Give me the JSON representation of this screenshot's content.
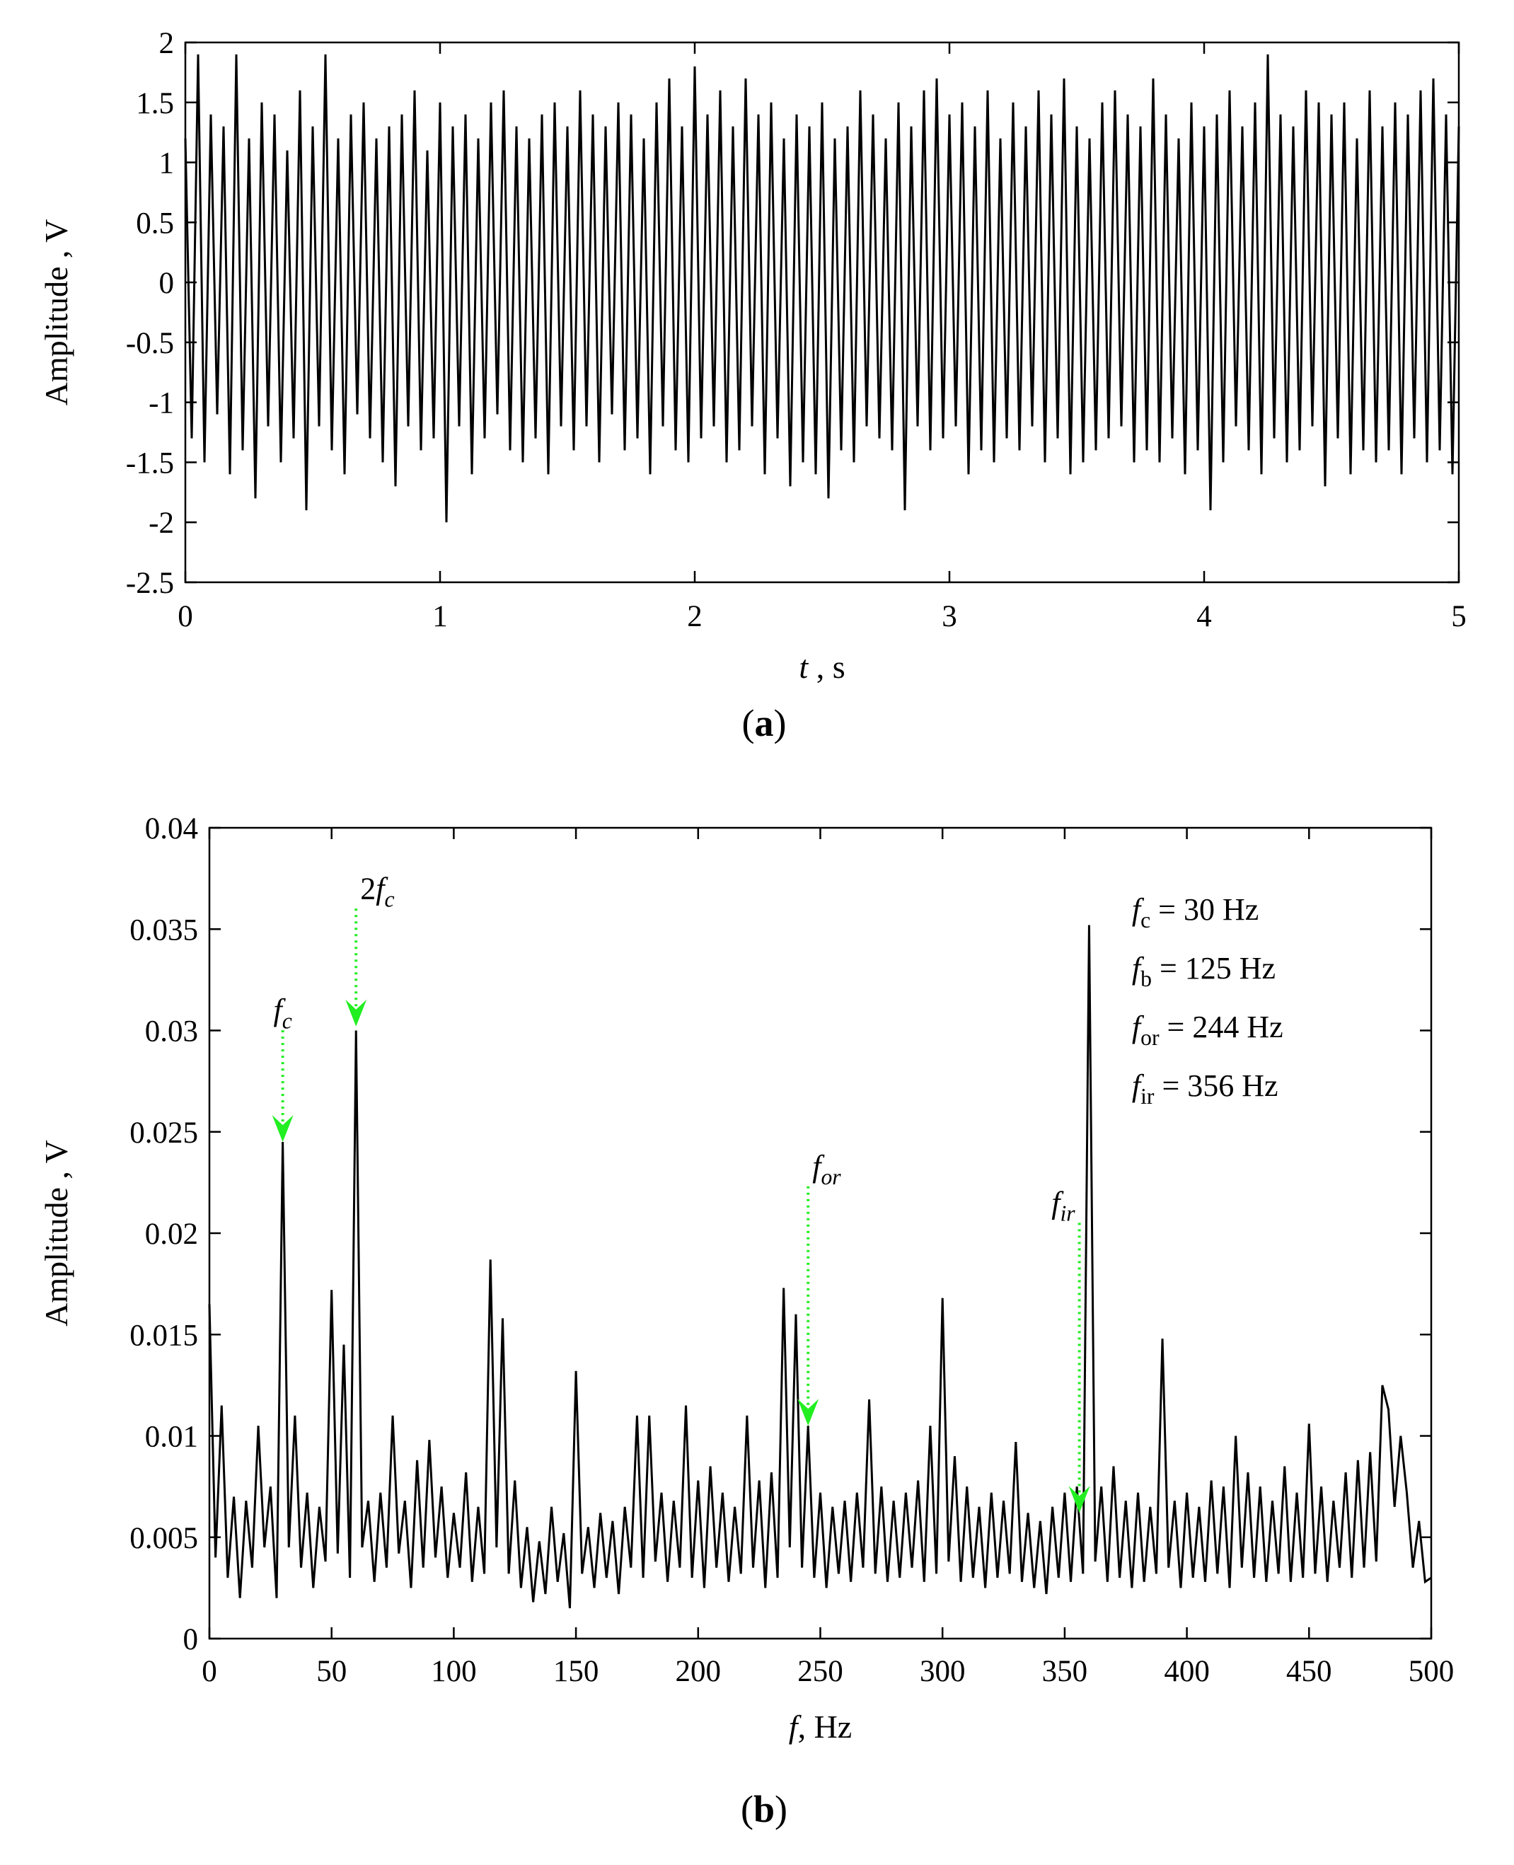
{
  "chart_data": [
    {
      "type": "line",
      "panel_label": {
        "open": "(",
        "letter": "a",
        "close": ")"
      },
      "xlabel": {
        "italic": "t",
        "rest": " , s"
      },
      "ylabel": "Amplitude , V",
      "color": "#000000",
      "xlim": [
        0,
        5
      ],
      "xticks": [
        0,
        1,
        2,
        3,
        4,
        5
      ],
      "ylim": [
        -2.5,
        2
      ],
      "yticks": [
        -2.5,
        -2,
        -1.5,
        -1,
        -0.5,
        0,
        0.5,
        1,
        1.5,
        2
      ],
      "x": [
        0,
        0.025,
        0.05,
        0.075,
        0.1,
        0.125,
        0.15,
        0.175,
        0.2,
        0.225,
        0.25,
        0.275,
        0.3,
        0.325,
        0.35,
        0.375,
        0.4,
        0.425,
        0.45,
        0.475,
        0.5,
        0.525,
        0.55,
        0.575,
        0.6,
        0.625,
        0.65,
        0.675,
        0.7,
        0.725,
        0.75,
        0.775,
        0.8,
        0.825,
        0.85,
        0.875,
        0.9,
        0.925,
        0.95,
        0.975,
        1,
        1.025,
        1.05,
        1.075,
        1.1,
        1.125,
        1.15,
        1.175,
        1.2,
        1.225,
        1.25,
        1.275,
        1.3,
        1.325,
        1.35,
        1.375,
        1.4,
        1.425,
        1.45,
        1.475,
        1.5,
        1.525,
        1.55,
        1.575,
        1.6,
        1.625,
        1.65,
        1.675,
        1.7,
        1.725,
        1.75,
        1.775,
        1.8,
        1.825,
        1.85,
        1.875,
        1.9,
        1.925,
        1.95,
        1.975,
        2,
        2.025,
        2.05,
        2.075,
        2.1,
        2.125,
        2.15,
        2.175,
        2.2,
        2.225,
        2.25,
        2.275,
        2.3,
        2.325,
        2.35,
        2.375,
        2.4,
        2.425,
        2.45,
        2.475,
        2.5,
        2.525,
        2.55,
        2.575,
        2.6,
        2.625,
        2.65,
        2.675,
        2.7,
        2.725,
        2.75,
        2.775,
        2.8,
        2.825,
        2.85,
        2.875,
        2.9,
        2.925,
        2.95,
        2.975,
        3,
        3.025,
        3.05,
        3.075,
        3.1,
        3.125,
        3.15,
        3.175,
        3.2,
        3.225,
        3.25,
        3.275,
        3.3,
        3.325,
        3.35,
        3.375,
        3.4,
        3.425,
        3.45,
        3.475,
        3.5,
        3.525,
        3.55,
        3.575,
        3.6,
        3.625,
        3.65,
        3.675,
        3.7,
        3.725,
        3.75,
        3.775,
        3.8,
        3.825,
        3.85,
        3.875,
        3.9,
        3.925,
        3.95,
        3.975,
        4,
        4.025,
        4.05,
        4.075,
        4.1,
        4.125,
        4.15,
        4.175,
        4.2,
        4.225,
        4.25,
        4.275,
        4.3,
        4.325,
        4.35,
        4.375,
        4.4,
        4.425,
        4.45,
        4.475,
        4.5,
        4.525,
        4.55,
        4.575,
        4.6,
        4.625,
        4.65,
        4.675,
        4.7,
        4.725,
        4.75,
        4.775,
        4.8,
        4.825,
        4.85,
        4.875,
        4.9,
        4.925,
        4.95,
        4.975,
        5
      ],
      "values": [
        1.2,
        -1.3,
        1.9,
        -1.5,
        1.4,
        -1.1,
        1.3,
        -1.6,
        1.9,
        -1.4,
        1.2,
        -1.8,
        1.5,
        -1.2,
        1.4,
        -1.5,
        1.1,
        -1.3,
        1.6,
        -1.9,
        1.3,
        -1.2,
        1.9,
        -1.4,
        1.2,
        -1.6,
        1.4,
        -1.1,
        1.5,
        -1.3,
        1.2,
        -1.5,
        1.3,
        -1.7,
        1.4,
        -1.2,
        1.6,
        -1.4,
        1.1,
        -1.3,
        1.5,
        -2.0,
        1.3,
        -1.2,
        1.4,
        -1.6,
        1.2,
        -1.3,
        1.5,
        -1.1,
        1.6,
        -1.4,
        1.3,
        -1.5,
        1.2,
        -1.3,
        1.4,
        -1.6,
        1.5,
        -1.2,
        1.3,
        -1.4,
        1.6,
        -1.2,
        1.4,
        -1.5,
        1.3,
        -1.1,
        1.5,
        -1.4,
        1.4,
        -1.3,
        1.2,
        -1.6,
        1.5,
        -1.2,
        1.7,
        -1.4,
        1.3,
        -1.5,
        1.8,
        -1.3,
        1.4,
        -1.2,
        1.6,
        -1.5,
        1.3,
        -1.4,
        1.7,
        -1.2,
        1.4,
        -1.6,
        1.5,
        -1.3,
        1.2,
        -1.7,
        1.4,
        -1.5,
        1.3,
        -1.6,
        1.5,
        -1.8,
        1.2,
        -1.4,
        1.3,
        -1.5,
        1.6,
        -1.2,
        1.4,
        -1.3,
        1.2,
        -1.4,
        1.5,
        -1.9,
        1.3,
        -1.2,
        1.6,
        -1.4,
        1.7,
        -1.3,
        1.4,
        -1.2,
        1.5,
        -1.6,
        1.3,
        -1.4,
        1.6,
        -1.5,
        1.2,
        -1.3,
        1.5,
        -1.4,
        1.3,
        -1.2,
        1.6,
        -1.5,
        1.4,
        -1.3,
        1.7,
        -1.6,
        1.3,
        -1.5,
        1.2,
        -1.4,
        1.5,
        -1.3,
        1.6,
        -1.2,
        1.4,
        -1.5,
        1.3,
        -1.4,
        1.7,
        -1.5,
        1.4,
        -1.3,
        1.2,
        -1.6,
        1.5,
        -1.4,
        1.3,
        -1.9,
        1.4,
        -1.5,
        1.6,
        -1.2,
        1.3,
        -1.4,
        1.5,
        -1.6,
        1.9,
        -1.3,
        1.4,
        -1.5,
        1.3,
        -1.4,
        1.6,
        -1.2,
        1.5,
        -1.7,
        1.4,
        -1.3,
        1.5,
        -1.6,
        1.2,
        -1.4,
        1.6,
        -1.5,
        1.3,
        -1.4,
        1.5,
        -1.6,
        1.4,
        -1.3,
        1.6,
        -1.5,
        1.7,
        -1.4,
        1.4,
        -1.6,
        1.3
      ]
    },
    {
      "type": "line",
      "panel_label": {
        "open": "(",
        "letter": "b",
        "close": ")"
      },
      "xlabel": {
        "italic": "f",
        "rest": ", Hz"
      },
      "ylabel": "Amplitude , V",
      "color": "#000000",
      "xlim": [
        0,
        500
      ],
      "xticks": [
        0,
        50,
        100,
        150,
        200,
        250,
        300,
        350,
        400,
        450,
        500
      ],
      "ylim": [
        0,
        0.04
      ],
      "yticks": [
        0,
        0.005,
        0.01,
        0.015,
        0.02,
        0.025,
        0.03,
        0.035,
        0.04
      ],
      "x": [
        0,
        2.5,
        5,
        7.5,
        10,
        12.5,
        15,
        17.5,
        20,
        22.5,
        25,
        27.5,
        30,
        32.5,
        35,
        37.5,
        40,
        42.5,
        45,
        47.5,
        50,
        52.5,
        55,
        57.5,
        60,
        62.5,
        65,
        67.5,
        70,
        72.5,
        75,
        77.5,
        80,
        82.5,
        85,
        87.5,
        90,
        92.5,
        95,
        97.5,
        100,
        102.5,
        105,
        107.5,
        110,
        112.5,
        115,
        117.5,
        120,
        122.5,
        125,
        127.5,
        130,
        132.5,
        135,
        137.5,
        140,
        142.5,
        145,
        147.5,
        150,
        152.5,
        155,
        157.5,
        160,
        162.5,
        165,
        167.5,
        170,
        172.5,
        175,
        177.5,
        180,
        182.5,
        185,
        187.5,
        190,
        192.5,
        195,
        197.5,
        200,
        202.5,
        205,
        207.5,
        210,
        212.5,
        215,
        217.5,
        220,
        222.5,
        225,
        227.5,
        230,
        232.5,
        235,
        237.5,
        240,
        242.5,
        245,
        247.5,
        250,
        252.5,
        255,
        257.5,
        260,
        262.5,
        265,
        267.5,
        270,
        272.5,
        275,
        277.5,
        280,
        282.5,
        285,
        287.5,
        290,
        292.5,
        295,
        297.5,
        300,
        302.5,
        305,
        307.5,
        310,
        312.5,
        315,
        317.5,
        320,
        322.5,
        325,
        327.5,
        330,
        332.5,
        335,
        337.5,
        340,
        342.5,
        345,
        347.5,
        350,
        352.5,
        355,
        357.5,
        360,
        362.5,
        365,
        367.5,
        370,
        372.5,
        375,
        377.5,
        380,
        382.5,
        385,
        387.5,
        390,
        392.5,
        395,
        397.5,
        400,
        402.5,
        405,
        407.5,
        410,
        412.5,
        415,
        417.5,
        420,
        422.5,
        425,
        427.5,
        430,
        432.5,
        435,
        437.5,
        440,
        442.5,
        445,
        447.5,
        450,
        452.5,
        455,
        457.5,
        460,
        462.5,
        465,
        467.5,
        470,
        472.5,
        475,
        477.5,
        480,
        482.5,
        485,
        487.5,
        490,
        492.5,
        495,
        497.5,
        500
      ],
      "values": [
        0.0165,
        0.004,
        0.0115,
        0.003,
        0.007,
        0.002,
        0.0068,
        0.0035,
        0.0105,
        0.0045,
        0.0075,
        0.002,
        0.0245,
        0.0045,
        0.011,
        0.0035,
        0.0072,
        0.0025,
        0.0065,
        0.0038,
        0.0172,
        0.0042,
        0.0145,
        0.003,
        0.03,
        0.0045,
        0.0068,
        0.0028,
        0.0072,
        0.0035,
        0.011,
        0.0042,
        0.0068,
        0.0025,
        0.0088,
        0.0035,
        0.0098,
        0.004,
        0.0075,
        0.003,
        0.0062,
        0.0035,
        0.0082,
        0.0028,
        0.0065,
        0.0032,
        0.0187,
        0.0045,
        0.0158,
        0.0032,
        0.0078,
        0.0025,
        0.0055,
        0.0018,
        0.0048,
        0.0022,
        0.0065,
        0.0028,
        0.0052,
        0.0015,
        0.0132,
        0.0032,
        0.0055,
        0.0025,
        0.0062,
        0.003,
        0.0058,
        0.0022,
        0.0065,
        0.0035,
        0.011,
        0.003,
        0.011,
        0.0038,
        0.0072,
        0.0028,
        0.0068,
        0.0035,
        0.0115,
        0.003,
        0.0078,
        0.0025,
        0.0085,
        0.0035,
        0.0072,
        0.0028,
        0.0065,
        0.0032,
        0.011,
        0.0035,
        0.0078,
        0.0025,
        0.0082,
        0.003,
        0.0173,
        0.0045,
        0.016,
        0.0035,
        0.0105,
        0.003,
        0.0072,
        0.0025,
        0.0065,
        0.0032,
        0.0068,
        0.0028,
        0.0072,
        0.0035,
        0.0118,
        0.0032,
        0.0075,
        0.0028,
        0.0068,
        0.003,
        0.0072,
        0.0035,
        0.0078,
        0.0028,
        0.0105,
        0.0032,
        0.0168,
        0.0038,
        0.009,
        0.0028,
        0.0075,
        0.003,
        0.0065,
        0.0025,
        0.0072,
        0.003,
        0.0068,
        0.0032,
        0.0097,
        0.0028,
        0.0062,
        0.0025,
        0.0058,
        0.0022,
        0.0065,
        0.003,
        0.0072,
        0.0028,
        0.0075,
        0.0032,
        0.0352,
        0.0038,
        0.0075,
        0.0028,
        0.0085,
        0.003,
        0.0068,
        0.0025,
        0.0072,
        0.0028,
        0.0065,
        0.0032,
        0.0148,
        0.0035,
        0.0068,
        0.0025,
        0.0072,
        0.003,
        0.0065,
        0.0028,
        0.0078,
        0.0032,
        0.0075,
        0.0025,
        0.01,
        0.0035,
        0.0082,
        0.003,
        0.0075,
        0.0028,
        0.0068,
        0.0032,
        0.0085,
        0.0028,
        0.0072,
        0.003,
        0.0106,
        0.0032,
        0.0075,
        0.0028,
        0.0068,
        0.0035,
        0.0082,
        0.003,
        0.0088,
        0.0035,
        0.0092,
        0.0038,
        0.0125,
        0.0113,
        0.0065,
        0.01,
        0.0072,
        0.0035,
        0.0058,
        0.0028,
        0.003
      ],
      "annotations": [
        {
          "prefix": "",
          "main": "f",
          "sub": "c",
          "x": 30,
          "y": 0.0245,
          "label_y": 0.0305
        },
        {
          "prefix": "2",
          "main": "f",
          "sub": "c",
          "x": 60,
          "y": 0.0302,
          "label_y": 0.0365
        },
        {
          "prefix": "",
          "main": "f",
          "sub": "or",
          "x": 245,
          "y": 0.0105,
          "label_y": 0.0228
        },
        {
          "prefix": "",
          "main": "f",
          "sub": "ir",
          "x": 356,
          "y": 0.0062,
          "label_y": 0.021
        }
      ],
      "arrow_color": "#22ee22",
      "notes": [
        {
          "main": "f",
          "sub": "c",
          "rest": " = 30 Hz"
        },
        {
          "main": "f",
          "sub": "b",
          "rest": " = 125 Hz"
        },
        {
          "main": "f",
          "sub": "or",
          "rest": " = 244 Hz"
        },
        {
          "main": "f",
          "sub": "ir",
          "rest": " = 356 Hz"
        }
      ]
    }
  ]
}
